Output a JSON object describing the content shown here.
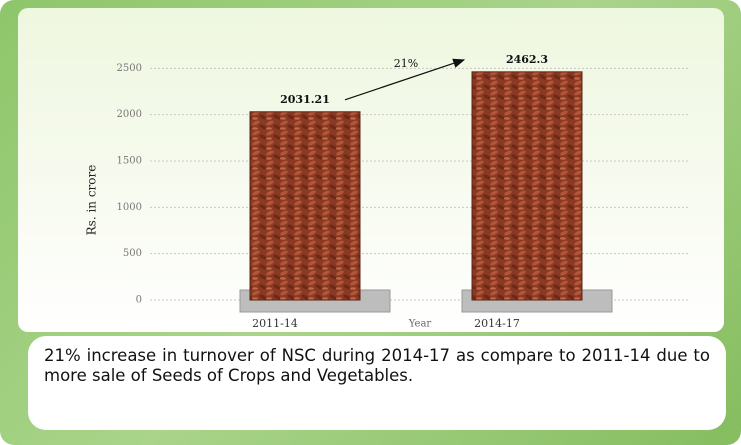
{
  "chart_data": {
    "type": "bar",
    "categories": [
      "2011-14",
      "2014-17"
    ],
    "values": [
      2031.21,
      2462.3
    ],
    "color": "#8a3a22",
    "ylim": [
      0,
      3000
    ],
    "yticks": [
      0,
      500,
      1000,
      1500,
      2000,
      2500
    ],
    "grid": true,
    "y_label": "Rs. in crore",
    "x_label": "Year",
    "annotation": "21%",
    "caption": "21% increase in turnover of NSC during 2014-17 as compare to 2011-14 due to more sale of Seeds of Crops and Vegetables."
  }
}
